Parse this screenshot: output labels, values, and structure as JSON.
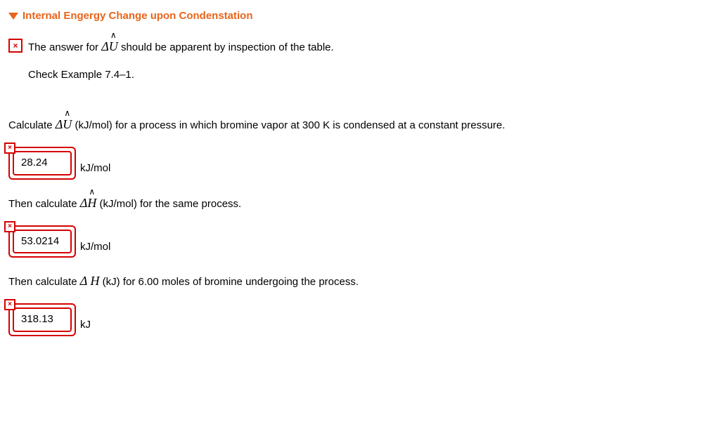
{
  "header": {
    "title": "Internal Engergy Change upon Condenstation"
  },
  "hint": {
    "line1_pre": "The answer for ",
    "line1_post": " should be apparent by inspection of the table.",
    "line2": "Check Example 7.4–1."
  },
  "q1": {
    "pre": "Calculate ",
    "post": " (kJ/mol) for a process in which bromine vapor at 300 K is condensed at a constant pressure."
  },
  "a1": {
    "value": "28.24",
    "unit": "kJ/mol"
  },
  "q2": {
    "pre": "Then calculate ",
    "post": " (kJ/mol) for the same process."
  },
  "a2": {
    "value": "53.0214",
    "unit": "kJ/mol"
  },
  "q3": {
    "pre": "Then calculate ",
    "post": " (kJ) for 6.00 moles of bromine undergoing the process."
  },
  "a3": {
    "value": "318.13",
    "unit": "kJ"
  },
  "symbols": {
    "delta": "Δ",
    "U": "U",
    "H": "H",
    "spaceH": " H"
  },
  "colors": {
    "accent": "#e8641b",
    "error": "#d40000",
    "text": "#000000",
    "bg": "#ffffff"
  },
  "icons": {
    "x": "×"
  }
}
